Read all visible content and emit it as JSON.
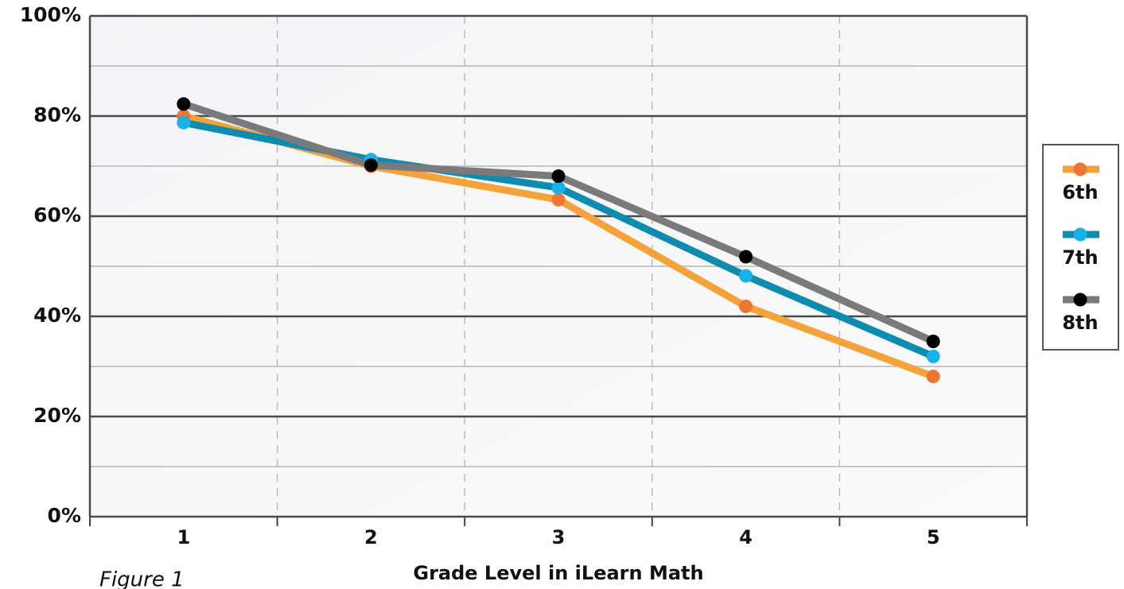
{
  "chart_data": {
    "type": "line",
    "xlabel": "Grade Level in iLearn Math",
    "caption": "Figure 1",
    "categories": [
      "1",
      "2",
      "3",
      "4",
      "5"
    ],
    "series": [
      {
        "name": "6th",
        "color": "#f4a23a",
        "marker_color": "#ef7533",
        "values": [
          80,
          70,
          63.3,
          42,
          28
        ]
      },
      {
        "name": "7th",
        "color": "#0e8caf",
        "marker_color": "#1ab0e8",
        "values": [
          78.7,
          71.3,
          65.7,
          48.1,
          32
        ]
      },
      {
        "name": "8th",
        "color": "#7a7a7c",
        "marker_color": "#000000",
        "values": [
          82.4,
          70.2,
          68,
          51.9,
          35
        ]
      }
    ],
    "ylim": [
      0,
      100
    ],
    "yticks": [
      {
        "value": 0,
        "label": "0%"
      },
      {
        "value": 20,
        "label": "20%"
      },
      {
        "value": 40,
        "label": "40%"
      },
      {
        "value": 60,
        "label": "60%"
      },
      {
        "value": 80,
        "label": "80%"
      },
      {
        "value": 100,
        "label": "100%"
      }
    ],
    "yticks_minor": [
      10,
      30,
      50,
      70,
      90
    ],
    "grid": true,
    "legend": "right"
  }
}
